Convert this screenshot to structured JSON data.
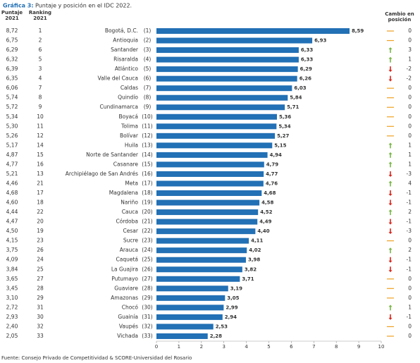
{
  "chart_data": {
    "type": "bar",
    "orientation": "horizontal",
    "title_prefix": "Gráfica 3:",
    "title": "Puntaje y posición en el IDC 2022.",
    "source": "Fuente: Consejo Privado de Competitividad & SCORE-Universidad del Rosario",
    "headers": {
      "puntaje": [
        "Puntaje",
        "2021"
      ],
      "ranking": [
        "Ranking",
        "2021"
      ],
      "change": [
        "Cambio en",
        "posición"
      ]
    },
    "color": "#2270b5",
    "categories": [
      "Bogotá, D.C.",
      "Antioquia",
      "Santander",
      "Risaralda",
      "Atlántico",
      "Valle del Cauca",
      "Caldas",
      "Quindío",
      "Cundinamarca",
      "Boyacá",
      "Tolima",
      "Bolívar",
      "Huila",
      "Norte de Santander",
      "Casanare",
      "Archipiélago de San Andrés",
      "Meta",
      "Magdalena",
      "Nariño",
      "Cauca",
      "Córdoba",
      "Cesar",
      "Sucre",
      "Arauca",
      "Caquetá",
      "La Guajira",
      "Putumayo",
      "Guaviare",
      "Amazonas",
      "Chocó",
      "Guainía",
      "Vaupés",
      "Vichada"
    ],
    "rank_2022": [
      "(1)",
      "(2)",
      "(3)",
      "(4)",
      "(5)",
      "(6)",
      "(7)",
      "(8)",
      "(9)",
      "(10)",
      "(11)",
      "(12)",
      "(13)",
      "(14)",
      "(15)",
      "(16)",
      "(17)",
      "(18)",
      "(19)",
      "(20)",
      "(21)",
      "(22)",
      "(23)",
      "(24)",
      "(25)",
      "(26)",
      "(27)",
      "(28)",
      "(29)",
      "(30)",
      "(31)",
      "(32)",
      "(33)"
    ],
    "values": [
      8.59,
      6.93,
      6.33,
      6.33,
      6.29,
      6.26,
      6.03,
      5.84,
      5.71,
      5.36,
      5.34,
      5.27,
      5.15,
      4.94,
      4.79,
      4.77,
      4.76,
      4.68,
      4.58,
      4.52,
      4.49,
      4.4,
      4.11,
      4.02,
      3.98,
      3.82,
      3.71,
      3.19,
      3.05,
      2.99,
      2.94,
      2.53,
      2.28
    ],
    "value_labels": [
      "8,59",
      "6,93",
      "6,33",
      "6,33",
      "6,29",
      "6,26",
      "6,03",
      "5,84",
      "5,71",
      "5,36",
      "5,34",
      "5,27",
      "5,15",
      "4,94",
      "4,79",
      "4,77",
      "4,76",
      "4,68",
      "4,58",
      "4,52",
      "4,49",
      "4,40",
      "4,11",
      "4,02",
      "3,98",
      "3,82",
      "3,71",
      "3,19",
      "3,05",
      "2,99",
      "2,94",
      "2,53",
      "2,28"
    ],
    "puntaje_2021": [
      "8,72",
      "6,75",
      "6,29",
      "6,32",
      "6,39",
      "6,35",
      "6,06",
      "5,74",
      "5,72",
      "5,34",
      "5,30",
      "5,26",
      "5,17",
      "4,87",
      "4,77",
      "5,21",
      "4,46",
      "4,68",
      "4,60",
      "4,44",
      "4,47",
      "4,50",
      "4,15",
      "3,75",
      "4,09",
      "3,84",
      "3,65",
      "3,45",
      "3,10",
      "2,72",
      "2,93",
      "2,40",
      "2,05"
    ],
    "ranking_2021": [
      1,
      2,
      6,
      5,
      3,
      4,
      7,
      8,
      9,
      10,
      11,
      12,
      14,
      15,
      16,
      13,
      21,
      17,
      18,
      22,
      20,
      19,
      23,
      26,
      24,
      25,
      27,
      28,
      29,
      31,
      30,
      32,
      33
    ],
    "change": [
      0,
      0,
      3,
      1,
      -2,
      -2,
      0,
      0,
      0,
      0,
      0,
      0,
      1,
      1,
      1,
      -3,
      4,
      -1,
      -1,
      2,
      -1,
      -3,
      0,
      2,
      -1,
      -1,
      0,
      0,
      0,
      1,
      -1,
      0,
      0
    ],
    "xlim": [
      0,
      10
    ],
    "xticks": [
      0,
      1,
      2,
      3,
      4,
      5,
      6,
      7,
      8,
      9,
      10
    ]
  }
}
